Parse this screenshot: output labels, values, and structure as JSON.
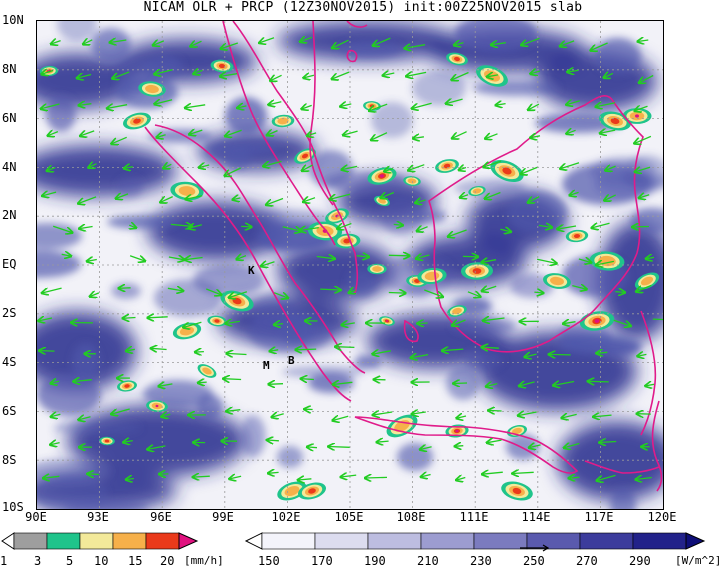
{
  "title": "NICAM OLR + PRCP (12Z30NOV2015) init:00Z25NOV2015 slab",
  "y_axis": [
    "10N",
    "8N",
    "6N",
    "4N",
    "2N",
    "EQ",
    "2S",
    "4S",
    "6S",
    "8S",
    "10S"
  ],
  "x_axis": [
    "90E",
    "93E",
    "96E",
    "99E",
    "102E",
    "105E",
    "108E",
    "111E",
    "114E",
    "117E",
    "120E"
  ],
  "map_labels": {
    "k": "K",
    "m": "M",
    "b": "B"
  },
  "precip_bar": {
    "labels": [
      "1",
      "3",
      "5",
      "10",
      "15",
      "20"
    ],
    "unit": "[mm/h]",
    "colors": [
      "#9e9e9e",
      "#1fc48b",
      "#f3e99a",
      "#f6b04a",
      "#ea3a1b",
      "#e0117f"
    ]
  },
  "olr_bar": {
    "labels": [
      "150",
      "170",
      "190",
      "210",
      "230",
      "250",
      "270",
      "290"
    ],
    "unit": "[W/m^2]",
    "colors": [
      "#f4f4fb",
      "#dcdcef",
      "#bdbde0",
      "#9c9cd0",
      "#7b7bbf",
      "#5a5aae",
      "#3c3c9c",
      "#22228a",
      "#0e0e78"
    ]
  },
  "colors": {
    "coast": "#e01b8a",
    "wind": "#22cc22",
    "grid": "#9a9a9a",
    "cloud_deep": "#232a8c",
    "cloud_mid": "#5058ac"
  }
}
